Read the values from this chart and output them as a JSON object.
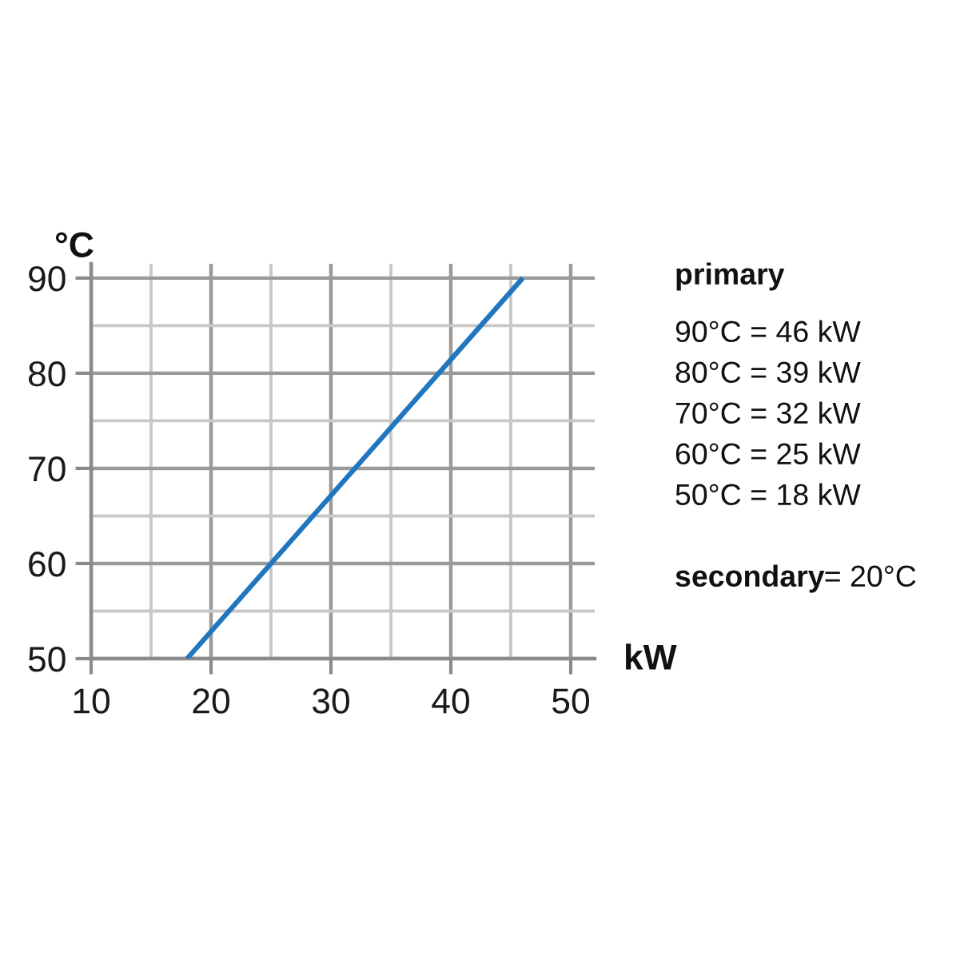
{
  "chart_data": {
    "type": "line",
    "x": [
      18,
      25,
      32,
      39,
      46
    ],
    "series": [
      {
        "color": "#2176c0",
        "values": [
          50,
          60,
          70,
          80,
          90
        ]
      }
    ],
    "xlabel": "kW",
    "ylabel": "°C",
    "xlim": [
      10,
      52
    ],
    "ylim": [
      50,
      91.5
    ],
    "xticks": [
      10,
      {
        "value": 15,
        "label": null
      },
      20,
      {
        "value": 25,
        "label": null
      },
      30,
      {
        "value": 35,
        "label": null
      },
      40,
      {
        "value": 45,
        "label": null
      },
      50
    ],
    "yticks": [
      50,
      {
        "value": 55,
        "label": null
      },
      60,
      {
        "value": 65,
        "label": null
      },
      70,
      {
        "value": 75,
        "label": null
      },
      80,
      {
        "value": 85,
        "label": null
      },
      90
    ],
    "grid": true,
    "marker": "none",
    "line_style": "solid",
    "annotations": [
      "primary",
      "90°C = 46 kW",
      "80°C = 39 kW",
      "70°C = 32 kW",
      "60°C = 25 kW",
      "50°C = 18 kW",
      "secondary= 20°C"
    ]
  }
}
